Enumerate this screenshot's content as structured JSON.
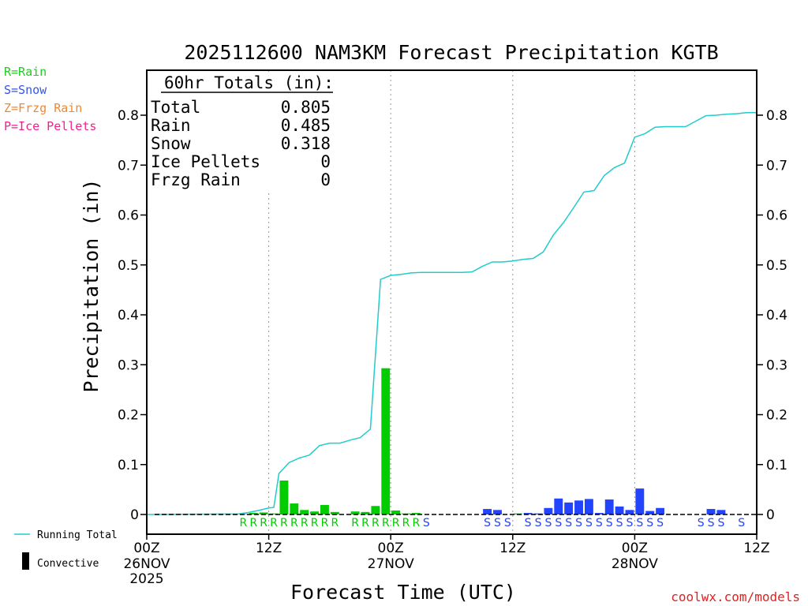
{
  "chart_data": {
    "type": "bar",
    "title": "2025112600 NAM3KM Forecast Precipitation KGTB",
    "xlabel": "Forecast Time (UTC)",
    "ylabel": "Precipitation (in)",
    "ylim": [
      0,
      0.88
    ],
    "xlim_hours": [
      0,
      60
    ],
    "yticks": [
      "0",
      "0.1",
      "0.2",
      "0.3",
      "0.4",
      "0.5",
      "0.6",
      "0.7",
      "0.8"
    ],
    "xticks": [
      {
        "hour": 0,
        "label": "00Z",
        "date": "26NOV",
        "year": "2025"
      },
      {
        "hour": 12,
        "label": "12Z",
        "date": "",
        "year": ""
      },
      {
        "hour": 24,
        "label": "00Z",
        "date": "27NOV",
        "year": ""
      },
      {
        "hour": 36,
        "label": "12Z",
        "date": "",
        "year": ""
      },
      {
        "hour": 48,
        "label": "00Z",
        "date": "28NOV",
        "year": ""
      },
      {
        "hour": 60,
        "label": "12Z",
        "date": "",
        "year": ""
      }
    ],
    "legend_types": [
      {
        "text": "R=Rain",
        "color": "#22cc22"
      },
      {
        "text": "S=Snow",
        "color": "#3355ee"
      },
      {
        "text": "Z=Frzg Rain",
        "color": "#ee8833"
      },
      {
        "text": "P=Ice Pellets",
        "color": "#ee2288"
      }
    ],
    "legend_lines": {
      "running_total": "Running Total",
      "convective": "Convective"
    },
    "totals": {
      "heading": "60hr Totals (in):",
      "rows": [
        {
          "label": "Total",
          "value": "0.805"
        },
        {
          "label": "Rain",
          "value": "0.485"
        },
        {
          "label": "Snow",
          "value": "0.318"
        },
        {
          "label": "Ice Pellets",
          "value": "0"
        },
        {
          "label": "Frzg Rain",
          "value": "0"
        }
      ]
    },
    "colors": {
      "rain": "#00cc00",
      "snow": "#2244ff",
      "running": "#22cccc"
    },
    "series": [
      {
        "name": "Hourly precipitation",
        "hours": [
          9,
          10,
          11,
          12,
          13,
          14,
          15,
          16,
          17,
          18,
          19,
          20,
          21,
          22,
          23,
          24,
          25,
          26,
          27,
          28,
          29,
          30,
          31,
          32,
          33,
          34,
          35,
          36,
          37,
          38,
          39,
          40,
          41,
          42,
          43,
          44,
          45,
          46,
          47,
          48,
          49,
          50,
          51,
          52,
          53,
          54,
          55,
          56,
          57,
          58,
          59
        ],
        "values": [
          0.001,
          0.003,
          0.004,
          0.002,
          0.068,
          0.022,
          0.009,
          0.006,
          0.019,
          0.005,
          0.0,
          0.006,
          0.005,
          0.017,
          0.293,
          0.008,
          0.002,
          0.003,
          0.0,
          0.0,
          0.0,
          0.0,
          0.0,
          0.0,
          0.011,
          0.009,
          0.0,
          0.002,
          0.003,
          0.002,
          0.013,
          0.032,
          0.024,
          0.028,
          0.031,
          0.003,
          0.03,
          0.016,
          0.009,
          0.052,
          0.007,
          0.013,
          0.0,
          0.0,
          0.0,
          0.0,
          0.011,
          0.009,
          0.0,
          0.0,
          0.0
        ],
        "types": [
          "R",
          "R",
          "R",
          "R",
          "R",
          "R",
          "R",
          "R",
          "R",
          "R",
          "",
          "R",
          "R",
          "R",
          "R",
          "R",
          "R",
          "R",
          "S",
          "",
          "",
          "",
          "",
          "",
          "S",
          "S",
          "S",
          "",
          "S",
          "S",
          "S",
          "S",
          "S",
          "S",
          "S",
          "S",
          "S",
          "S",
          "S",
          "S",
          "S",
          "S",
          "",
          "",
          "",
          "S",
          "S",
          "S",
          "",
          "S",
          ""
        ]
      },
      {
        "name": "Running Total",
        "hours": [
          0,
          9,
          10,
          11,
          12,
          12.5,
          13,
          14,
          15,
          16,
          17,
          18,
          19,
          20,
          21,
          22,
          23,
          24,
          25,
          26,
          27,
          28,
          29,
          30,
          31,
          32,
          33,
          34,
          35,
          36,
          37,
          38,
          39,
          40,
          41,
          42,
          43,
          44,
          45,
          46,
          47,
          48,
          49,
          50,
          51,
          52,
          53,
          54,
          55,
          56,
          57,
          58,
          59,
          60
        ],
        "values": [
          0.0,
          0.001,
          0.004,
          0.008,
          0.013,
          0.014,
          0.082,
          0.104,
          0.113,
          0.119,
          0.138,
          0.143,
          0.143,
          0.149,
          0.154,
          0.171,
          0.471,
          0.479,
          0.481,
          0.484,
          0.485,
          0.485,
          0.485,
          0.485,
          0.485,
          0.486,
          0.497,
          0.506,
          0.506,
          0.508,
          0.511,
          0.513,
          0.526,
          0.56,
          0.585,
          0.615,
          0.646,
          0.649,
          0.679,
          0.695,
          0.704,
          0.756,
          0.763,
          0.776,
          0.777,
          0.777,
          0.777,
          0.788,
          0.799,
          0.8,
          0.802,
          0.803,
          0.805,
          0.805
        ]
      }
    ]
  },
  "watermark": "coolwx.com/models"
}
